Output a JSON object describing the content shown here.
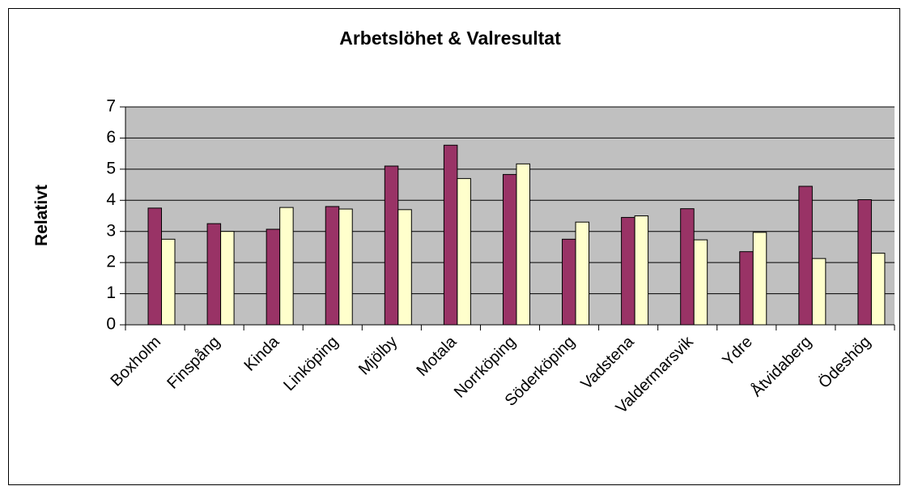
{
  "chart_data": {
    "type": "bar",
    "title": "Arbetslöhet & Valresultat",
    "y_label": "Relativt",
    "categories": [
      "Boxholm",
      "Finspång",
      "Kinda",
      "Linköping",
      "Mjölby",
      "Motala",
      "Norrköping",
      "Söderköping",
      "Vadstena",
      "Valdermarsvik",
      "Ydre",
      "Åtvidaberg",
      "Ödeshög"
    ],
    "series": [
      {
        "color": "#993366",
        "values": [
          3.75,
          3.25,
          3.07,
          3.8,
          5.1,
          5.77,
          4.83,
          2.75,
          3.45,
          3.73,
          2.35,
          4.45,
          4.02
        ]
      },
      {
        "color": "#ffffcc",
        "values": [
          2.75,
          3.0,
          3.77,
          3.72,
          3.7,
          4.7,
          5.17,
          3.3,
          3.5,
          2.73,
          2.97,
          2.13,
          2.3
        ]
      }
    ],
    "ylim": [
      0,
      7
    ],
    "yticks": [
      0,
      1,
      2,
      3,
      4,
      5,
      6,
      7
    ],
    "grid": true,
    "plot_background": "#c0c0c0"
  }
}
